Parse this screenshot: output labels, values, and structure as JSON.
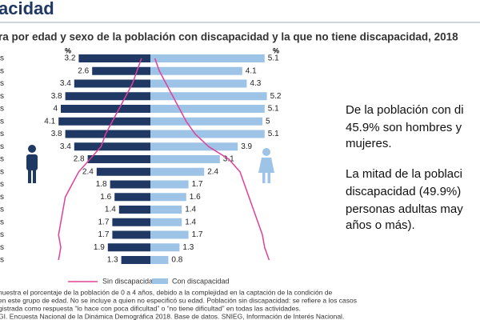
{
  "slide_title": "acidad",
  "chart_data": {
    "type": "pyramid",
    "title": "ra por edad y sexo de la población con discapacidad y la que no tiene discapacidad, 2018",
    "unit_label": "%",
    "categories": [
      "s",
      "s",
      "s",
      "s",
      "s",
      "s",
      "s",
      "s",
      "s",
      "s",
      "s",
      "s",
      "s",
      "s",
      "s",
      "s",
      "s"
    ],
    "xlim": [
      0,
      6
    ],
    "series": [
      {
        "name": "Con discapacidad",
        "colors": [
          "#1f3864",
          "#9dc3e6"
        ],
        "left": [
          3.2,
          2.6,
          3.4,
          3.8,
          4.0,
          4.1,
          3.8,
          3.4,
          2.8,
          2.4,
          1.8,
          1.6,
          1.4,
          1.7,
          1.7,
          1.9,
          1.3
        ],
        "right": [
          5.1,
          4.1,
          4.3,
          5.2,
          5.1,
          5.0,
          5.1,
          3.9,
          3.1,
          2.4,
          1.7,
          1.6,
          1.4,
          1.4,
          1.7,
          1.3,
          0.8
        ]
      },
      {
        "name": "Sin discapacidad",
        "color": "#e0409a",
        "left": [
          0.4,
          0.6,
          0.8,
          1.1,
          1.4,
          1.7,
          2.0,
          2.2,
          2.7,
          3.2,
          3.5,
          3.8,
          3.9,
          4.0,
          4.1,
          4.0,
          4.1
        ],
        "right": [
          0.2,
          0.4,
          0.7,
          1.0,
          1.3,
          1.6,
          2.0,
          2.6,
          3.5,
          4.0,
          4.2,
          4.4,
          4.6,
          4.8,
          5.0,
          5.1,
          5.3
        ]
      }
    ]
  },
  "body": [
    "De la población con di",
    "45.9% son hombres y",
    "mujeres.",
    "La mitad de la poblaci",
    "discapacidad (49.9%)",
    "personas adultas may",
    "años o más)."
  ],
  "notes": [
    "nuestra el porcentaje de la población de 0 a 4 años, debido a la complejidad en la captación de la condición de",
    "en este grupo de edad.  No se incluye a quien no especificó su edad. Población sin discapacidad: se refiere a los casos",
    "gistrada como respuesta “lo hace con poca dificultad” o “no tiene dificultad” en todas las actividades.",
    "GI. Encuesta Nacional de la Dinámica Demográfica 2018. Base de datos. SNIEG, Información de Interés Nacional."
  ]
}
